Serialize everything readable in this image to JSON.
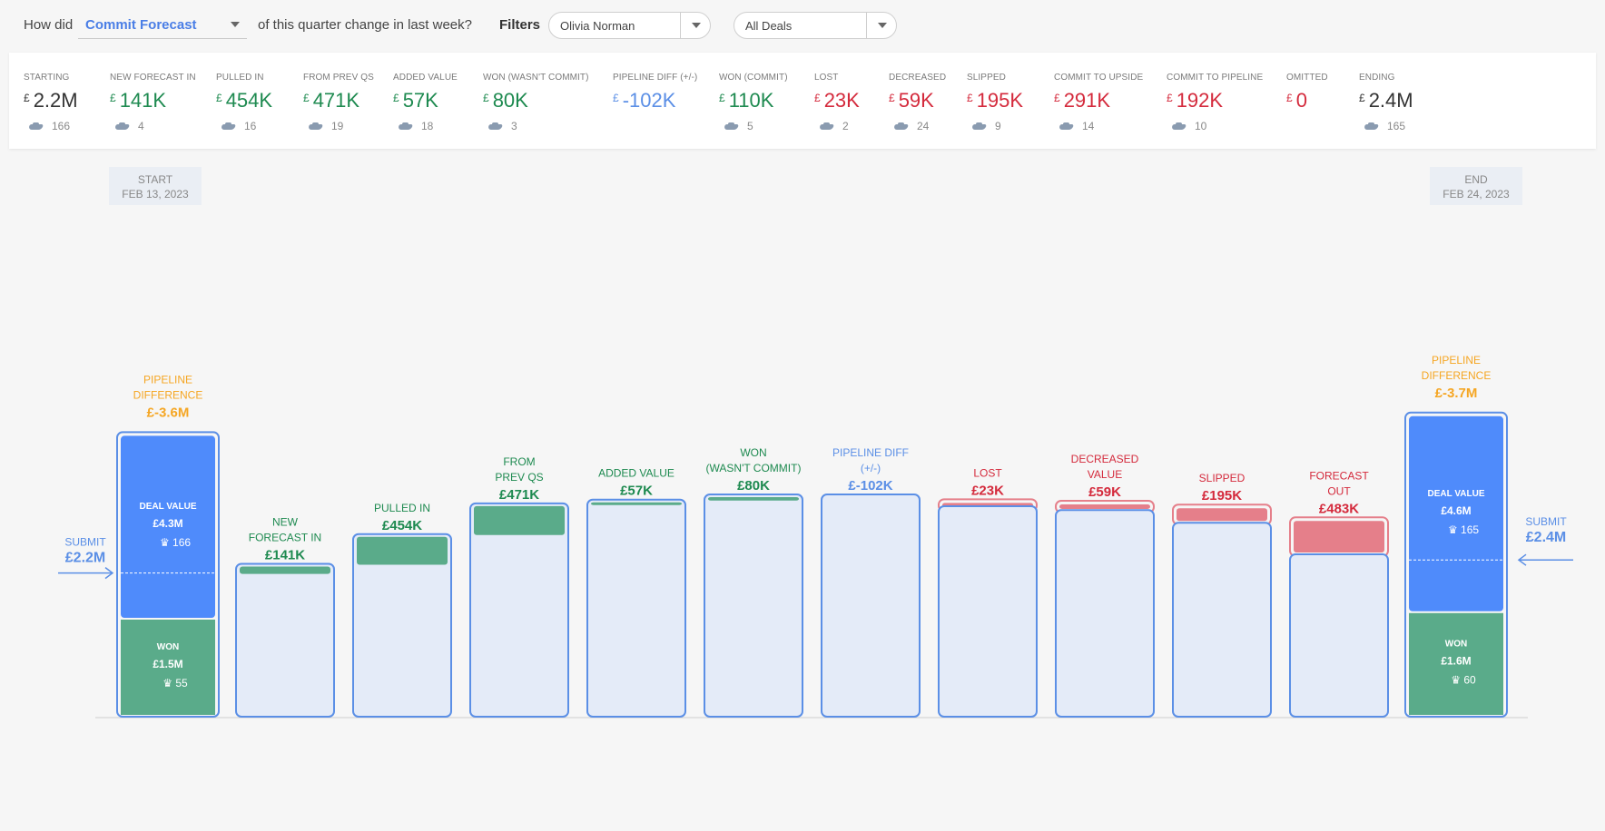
{
  "query": {
    "prefix": "How did",
    "metric": "Commit Forecast",
    "suffix": "of this quarter change in last week?",
    "filters_label": "Filters",
    "owner_filter": "Olivia Norman",
    "deals_filter": "All Deals"
  },
  "colors": {
    "blue": "#4f8bfb",
    "blue_border": "#5b8fe6",
    "light_fill": "#e4ebf8",
    "green": "#5aab8a",
    "green_text": "#1e8a50",
    "red": "#e57f8a",
    "red_text": "#d42a3c",
    "orange": "#f5a623",
    "blue_text": "#5b8fe6"
  },
  "summary": [
    {
      "label": "STARTING",
      "currency": "£",
      "value": "2.2M",
      "count": "166",
      "color": "#333333"
    },
    {
      "label": "NEW FORECAST IN",
      "currency": "£",
      "value": "141K",
      "count": "4",
      "color": "#1e8a50"
    },
    {
      "label": "PULLED IN",
      "currency": "£",
      "value": "454K",
      "count": "16",
      "color": "#1e8a50"
    },
    {
      "label": "FROM PREV QS",
      "currency": "£",
      "value": "471K",
      "count": "19",
      "color": "#1e8a50"
    },
    {
      "label": "ADDED VALUE",
      "currency": "£",
      "value": "57K",
      "count": "18",
      "color": "#1e8a50"
    },
    {
      "label": "WON (WASN'T COMMIT)",
      "currency": "£",
      "value": "80K",
      "count": "3",
      "color": "#1e8a50"
    },
    {
      "label": "PIPELINE DIFF (+/-)",
      "currency": "£",
      "value": "-102K",
      "count": "",
      "color": "#5b8fe6"
    },
    {
      "label": "WON (COMMIT)",
      "currency": "£",
      "value": "110K",
      "count": "5",
      "color": "#1e8a50"
    },
    {
      "label": "LOST",
      "currency": "£",
      "value": "23K",
      "count": "2",
      "color": "#d42a3c"
    },
    {
      "label": "DECREASED",
      "currency": "£",
      "value": "59K",
      "count": "24",
      "color": "#d42a3c"
    },
    {
      "label": "SLIPPED",
      "currency": "£",
      "value": "195K",
      "count": "9",
      "color": "#d42a3c"
    },
    {
      "label": "COMMIT TO UPSIDE",
      "currency": "£",
      "value": "291K",
      "count": "14",
      "color": "#d42a3c"
    },
    {
      "label": "COMMIT TO PIPELINE",
      "currency": "£",
      "value": "192K",
      "count": "10",
      "color": "#d42a3c"
    },
    {
      "label": "OMITTED",
      "currency": "£",
      "value": "0",
      "count": "",
      "color": "#d42a3c"
    },
    {
      "label": "ENDING",
      "currency": "£",
      "value": "2.4M",
      "count": "165",
      "color": "#333333"
    }
  ],
  "chart_data": {
    "type": "bar",
    "unit": "£K",
    "start_date": {
      "label": "START",
      "date": "FEB 13, 2023"
    },
    "end_date": {
      "label": "END",
      "date": "FEB 24, 2023"
    },
    "submit_start": {
      "label": "SUBMIT",
      "value": "£2.2M"
    },
    "submit_end": {
      "label": "SUBMIT",
      "value": "£2.4M"
    },
    "start_bar": {
      "top_label": [
        "PIPELINE",
        "DIFFERENCE"
      ],
      "top_value": "£-3.6M",
      "deal_label": "DEAL VALUE",
      "deal_value": "£4.3M",
      "deal_count": "166",
      "won_label": "WON",
      "won_value": "£1.5M",
      "won_count": "55",
      "deal_k": 4300,
      "won_k": 1500,
      "submit_k": 2200
    },
    "end_bar": {
      "top_label": [
        "PIPELINE",
        "DIFFERENCE"
      ],
      "top_value": "£-3.7M",
      "deal_label": "DEAL VALUE",
      "deal_value": "£4.6M",
      "deal_count": "165",
      "won_label": "WON",
      "won_value": "£1.6M",
      "won_count": "60",
      "deal_k": 4600,
      "won_k": 1600,
      "submit_k": 2400
    },
    "steps": [
      {
        "label": [
          "NEW",
          "FORECAST IN"
        ],
        "value": "£141K",
        "delta_k": 141,
        "kind": "increase"
      },
      {
        "label": [
          "PULLED IN"
        ],
        "value": "£454K",
        "delta_k": 454,
        "kind": "increase"
      },
      {
        "label": [
          "FROM",
          "PREV QS"
        ],
        "value": "£471K",
        "delta_k": 471,
        "kind": "increase"
      },
      {
        "label": [
          "ADDED VALUE"
        ],
        "value": "£57K",
        "delta_k": 57,
        "kind": "increase"
      },
      {
        "label": [
          "WON",
          "(WASN'T COMMIT)"
        ],
        "value": "£80K",
        "delta_k": 80,
        "kind": "increase"
      },
      {
        "label": [
          "PIPELINE DIFF",
          "(+/-)"
        ],
        "value": "£-102K",
        "delta_k": -102,
        "kind": "neutral"
      },
      {
        "label": [
          "LOST"
        ],
        "value": "£23K",
        "delta_k": -23,
        "kind": "decrease"
      },
      {
        "label": [
          "DECREASED",
          "VALUE"
        ],
        "value": "£59K",
        "delta_k": -59,
        "kind": "decrease"
      },
      {
        "label": [
          "SLIPPED"
        ],
        "value": "£195K",
        "delta_k": -195,
        "kind": "decrease"
      },
      {
        "label": [
          "FORECAST",
          "OUT"
        ],
        "value": "£483K",
        "delta_k": -483,
        "kind": "decrease"
      }
    ]
  }
}
